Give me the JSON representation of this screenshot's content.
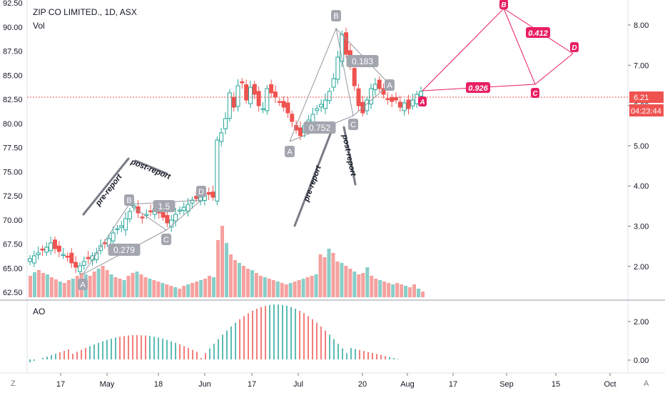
{
  "header": {
    "symbol": "ZIP CO LIMITED., 1D, ASX",
    "volume_label": "Vol"
  },
  "ao_label": "AO",
  "corner_buttons": {
    "left": "Z",
    "right": "A"
  },
  "price_axis": {
    "left_ticks": [
      "92.50",
      "90.00",
      "87.50",
      "85.00",
      "82.50",
      "80.00",
      "77.50",
      "75.00",
      "72.50",
      "70.00",
      "67.50",
      "65.00",
      "62.50"
    ],
    "right_ticks": [
      "8.00",
      "7.00",
      "6.00",
      "5.00",
      "4.00",
      "3.00",
      "2.00"
    ],
    "current_price": "6.21",
    "countdown": "04:23:44",
    "price_color": "#ef5350"
  },
  "ao_axis": {
    "ticks": [
      "2.00",
      "0.00"
    ]
  },
  "time_axis": {
    "labels": [
      "17",
      "May",
      "18",
      "Jun",
      "17",
      "Jul",
      "20",
      "Aug",
      "17",
      "Sep",
      "15",
      "Oct"
    ]
  },
  "colors": {
    "up": "#26a69a",
    "down": "#ef5350",
    "pattern": "#e91e63",
    "harmonic": "#9598a1"
  },
  "chart_data": {
    "type": "candlestick",
    "title": "ZIP CO LIMITED., 1D, ASX",
    "right_axis_range": [
      1.5,
      8.6
    ],
    "left_axis_range": [
      61.5,
      93.5
    ],
    "series": [
      {
        "name": "Price",
        "type": "candlestick"
      },
      {
        "name": "Vol",
        "type": "bar"
      },
      {
        "name": "AO",
        "type": "histogram",
        "range": [
          -0.4,
          2.8
        ]
      }
    ],
    "annotations": {
      "harmonic_labels": [
        "A",
        "B",
        "C",
        "D",
        "A",
        "B",
        "C",
        "A"
      ],
      "ratios": [
        "0.279",
        "1.5",
        "0.183",
        "0.752"
      ],
      "text_notes": [
        "pre-report",
        "post-report",
        "pre-report",
        "post-report"
      ],
      "projection_labels": [
        "A",
        "B",
        "C",
        "D"
      ],
      "projection_ratios": [
        "0.926",
        "0.412"
      ]
    }
  }
}
